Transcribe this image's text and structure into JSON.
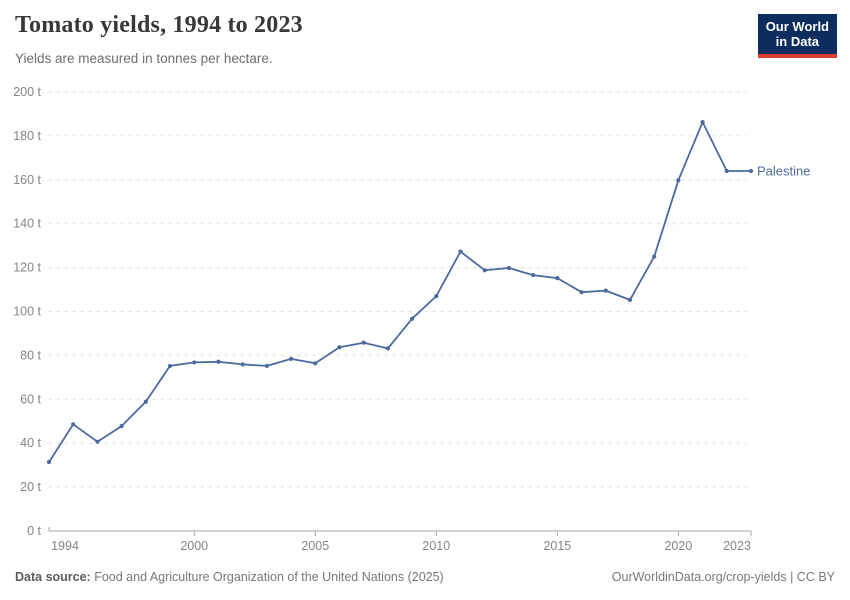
{
  "header": {
    "title": "Tomato yields, 1994 to 2023",
    "subtitle": "Yields are measured in tonnes per hectare.",
    "logo": {
      "line1": "Our World",
      "line2": "in Data"
    }
  },
  "footer": {
    "source_label": "Data source:",
    "source_text": " Food and Agriculture Organization of the United Nations (2025)",
    "credit": "OurWorldinData.org/crop-yields | CC BY"
  },
  "colors": {
    "series": "#4C6A9D",
    "grid": "#dcdcdc",
    "axis": "#a5a5a5",
    "tick_label": "#858585",
    "logo_bg": "#0b2e5f",
    "logo_stripe": "#dc3e32"
  },
  "chart_data": {
    "type": "line",
    "title": "Tomato yields, 1994 to 2023",
    "subtitle": "Yields are measured in tonnes per hectare.",
    "xlabel": "",
    "ylabel": "tonnes per hectare",
    "ylim": [
      0,
      200
    ],
    "ytick_step": 20,
    "ytick_suffix": " t",
    "xticks": [
      1994,
      2000,
      2005,
      2010,
      2015,
      2020,
      2023
    ],
    "grid": "horizontal-dashed",
    "legend_position": "end-of-line-label",
    "x": [
      1994,
      1995,
      1996,
      1997,
      1998,
      1999,
      2000,
      2001,
      2002,
      2003,
      2004,
      2005,
      2006,
      2007,
      2008,
      2009,
      2010,
      2011,
      2012,
      2013,
      2014,
      2015,
      2016,
      2017,
      2018,
      2019,
      2020,
      2021,
      2022,
      2023
    ],
    "series": [
      {
        "name": "Palestine",
        "color": "#4C6A9D",
        "values": [
          31.4,
          48.6,
          40.7,
          47.8,
          58.9,
          75.2,
          76.8,
          77.1,
          75.9,
          75.2,
          78.4,
          76.4,
          83.7,
          85.8,
          83.2,
          96.7,
          107.0,
          127.3,
          118.8,
          119.8,
          116.6,
          115.2,
          108.8,
          109.5,
          105.3,
          125.0,
          159.8,
          186.3,
          164.0,
          164.0
        ]
      }
    ]
  }
}
